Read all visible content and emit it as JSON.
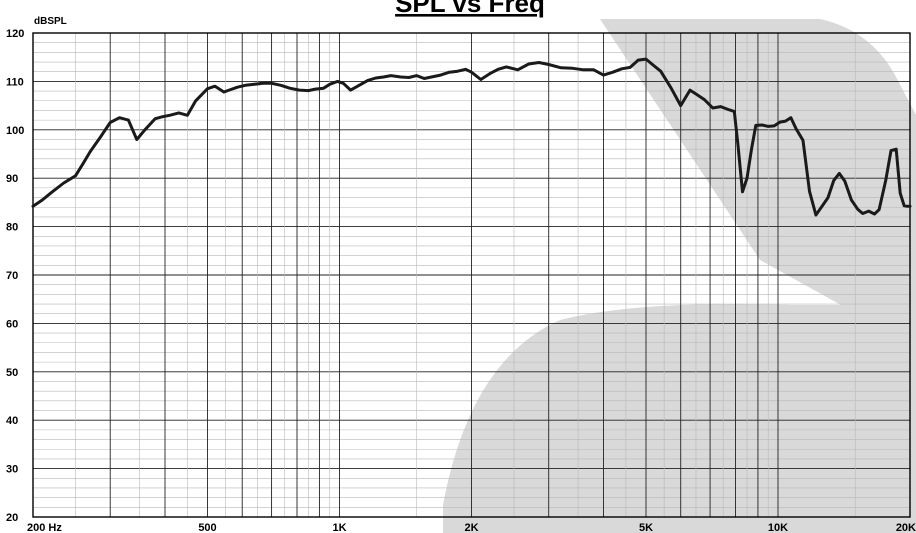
{
  "chart_data": {
    "type": "line",
    "title": "SPL vs Freq",
    "ylabel": "dBSPL",
    "xlabel": "",
    "x_scale": "log",
    "xlim": [
      200,
      20000
    ],
    "ylim": [
      20,
      120
    ],
    "grid": true,
    "y_ticks": [
      "120",
      "110",
      "100",
      "90",
      "80",
      "70",
      "60",
      "50",
      "40",
      "30",
      "20"
    ],
    "x_ticks": [
      {
        "value": 200,
        "label": "200  Hz"
      },
      {
        "value": 500,
        "label": "500"
      },
      {
        "value": 1000,
        "label": "1K"
      },
      {
        "value": 2000,
        "label": "2K"
      },
      {
        "value": 5000,
        "label": "5K"
      },
      {
        "value": 10000,
        "label": "10K"
      },
      {
        "value": 20000,
        "label": "20K"
      }
    ],
    "series": [
      {
        "color": "#1a1a1a",
        "x": [
          200,
          210,
          220,
          235,
          250,
          260,
          270,
          285,
          300,
          315,
          330,
          345,
          360,
          380,
          395,
          410,
          430,
          450,
          470,
          500,
          520,
          545,
          560,
          585,
          610,
          640,
          670,
          700,
          735,
          770,
          810,
          850,
          880,
          920,
          950,
          990,
          1020,
          1060,
          1100,
          1160,
          1210,
          1260,
          1310,
          1380,
          1440,
          1500,
          1560,
          1620,
          1700,
          1780,
          1860,
          1940,
          2000,
          2100,
          2200,
          2300,
          2400,
          2550,
          2700,
          2850,
          3000,
          3200,
          3400,
          3600,
          3800,
          4000,
          4200,
          4400,
          4600,
          4800,
          5000,
          5200,
          5400,
          5700,
          6000,
          6300,
          6500,
          6800,
          7100,
          7400,
          7700,
          7950,
          8100,
          8300,
          8500,
          8700,
          8900,
          9200,
          9500,
          9800,
          10100,
          10400,
          10700,
          11000,
          11400,
          11800,
          12200,
          12600,
          13000,
          13400,
          13800,
          14200,
          14700,
          15200,
          15600,
          16100,
          16600,
          17000,
          17600,
          18100,
          18600,
          19000,
          19400,
          19700,
          20000
        ],
        "y": [
          84.2,
          85.5,
          87,
          89,
          90.5,
          93,
          95.5,
          98.5,
          101.5,
          102.5,
          102,
          98,
          100,
          102.3,
          102.7,
          103,
          103.5,
          103,
          106,
          108.5,
          109,
          107.8,
          108.2,
          108.8,
          109.2,
          109.4,
          109.6,
          109.6,
          109.2,
          108.6,
          108.2,
          108.1,
          108.4,
          108.6,
          109.4,
          110,
          109.6,
          108.2,
          109,
          110.2,
          110.7,
          110.9,
          111.2,
          110.9,
          110.8,
          111.2,
          110.6,
          110.9,
          111.3,
          111.9,
          112.1,
          112.5,
          111.9,
          110.4,
          111.6,
          112.5,
          113,
          112.4,
          113.6,
          113.9,
          113.5,
          112.8,
          112.7,
          112.4,
          112.4,
          111.3,
          111.9,
          112.6,
          112.9,
          114.4,
          114.6,
          113.3,
          112.1,
          108.7,
          105,
          108.2,
          107.4,
          106.2,
          104.5,
          104.8,
          104.2,
          103.8,
          97,
          87.2,
          90,
          96,
          100.9,
          101,
          100.7,
          100.8,
          101.6,
          101.8,
          102.5,
          100.2,
          97.8,
          87.3,
          82.4,
          84.2,
          86,
          89.5,
          91,
          89.4,
          85.5,
          83.6,
          82.7,
          83.2,
          82.6,
          83.5,
          89.5,
          95.7,
          96,
          86.9,
          84.3,
          84.2,
          84.2
        ]
      }
    ]
  }
}
